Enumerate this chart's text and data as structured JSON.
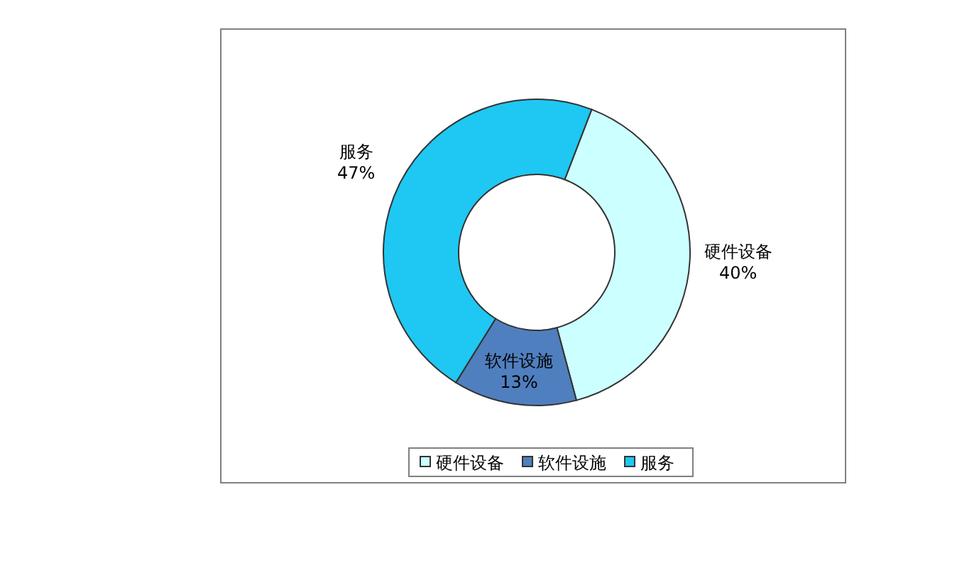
{
  "chart_data": {
    "type": "donut",
    "categories": [
      "硬件设备",
      "软件设施",
      "服务"
    ],
    "values": [
      40,
      13,
      47
    ],
    "colors": [
      "#ccffff",
      "#4f7fbf",
      "#1ec8f2"
    ],
    "value_labels": [
      "40%",
      "13%",
      "47%"
    ],
    "legend": "bottom"
  }
}
